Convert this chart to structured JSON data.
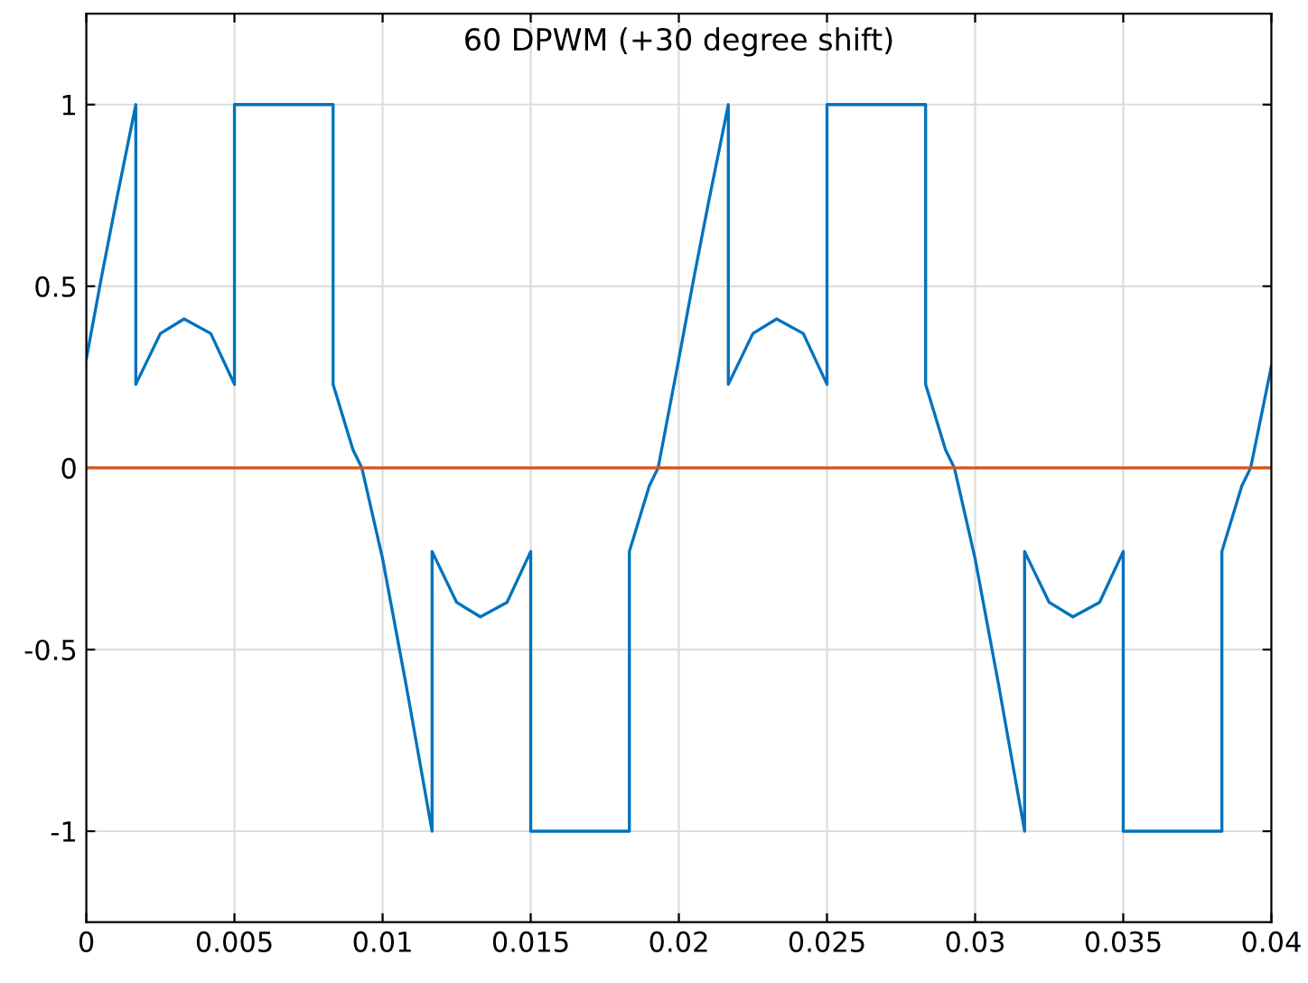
{
  "chart_data": {
    "type": "line",
    "title": "60 DPWM (+30 degree shift)",
    "xlim": [
      0,
      0.04
    ],
    "ylim": [
      -1.25,
      1.25
    ],
    "xticks": [
      0,
      0.005,
      0.01,
      0.015,
      0.02,
      0.025,
      0.03,
      0.035,
      0.04
    ],
    "yticks": [
      -1,
      -0.5,
      0,
      0.5,
      1
    ],
    "grid": true,
    "legend": false,
    "series": [
      {
        "color": "#0072bd",
        "x": [
          0,
          0.0005,
          0.001,
          0.00167,
          0.00167,
          0.0025,
          0.0033,
          0.0042,
          0.005,
          0.005,
          0.00833,
          0.00833,
          0.009,
          0.0093,
          0.01,
          0.0108,
          0.01167,
          0.01167,
          0.0125,
          0.0133,
          0.0142,
          0.015,
          0.015,
          0.01833,
          0.01833,
          0.019,
          0.0193,
          0.02,
          0.0205,
          0.021,
          0.02167,
          0.02167,
          0.0225,
          0.0233,
          0.0242,
          0.025,
          0.025,
          0.02833,
          0.02833,
          0.029,
          0.0293,
          0.03,
          0.0308,
          0.03167,
          0.03167,
          0.0325,
          0.0333,
          0.0342,
          0.035,
          0.035,
          0.03833,
          0.03833,
          0.039,
          0.0393,
          0.04
        ],
        "values": [
          0.3,
          0.52,
          0.73,
          1,
          0.23,
          0.37,
          0.41,
          0.37,
          0.23,
          1,
          1,
          0.23,
          0.05,
          0,
          -0.25,
          -0.6,
          -1,
          -0.23,
          -0.37,
          -0.41,
          -0.37,
          -0.23,
          -1,
          -1,
          -0.23,
          -0.05,
          0,
          0.3,
          0.52,
          0.73,
          1,
          0.23,
          0.37,
          0.41,
          0.37,
          0.23,
          1,
          1,
          0.23,
          0.05,
          0,
          -0.25,
          -0.6,
          -1,
          -0.23,
          -0.37,
          -0.41,
          -0.37,
          -0.23,
          -1,
          -1,
          -0.23,
          -0.05,
          0,
          0.28
        ]
      },
      {
        "color": "#d95319",
        "x": [
          0,
          0.04
        ],
        "values": [
          0,
          0
        ]
      }
    ]
  }
}
